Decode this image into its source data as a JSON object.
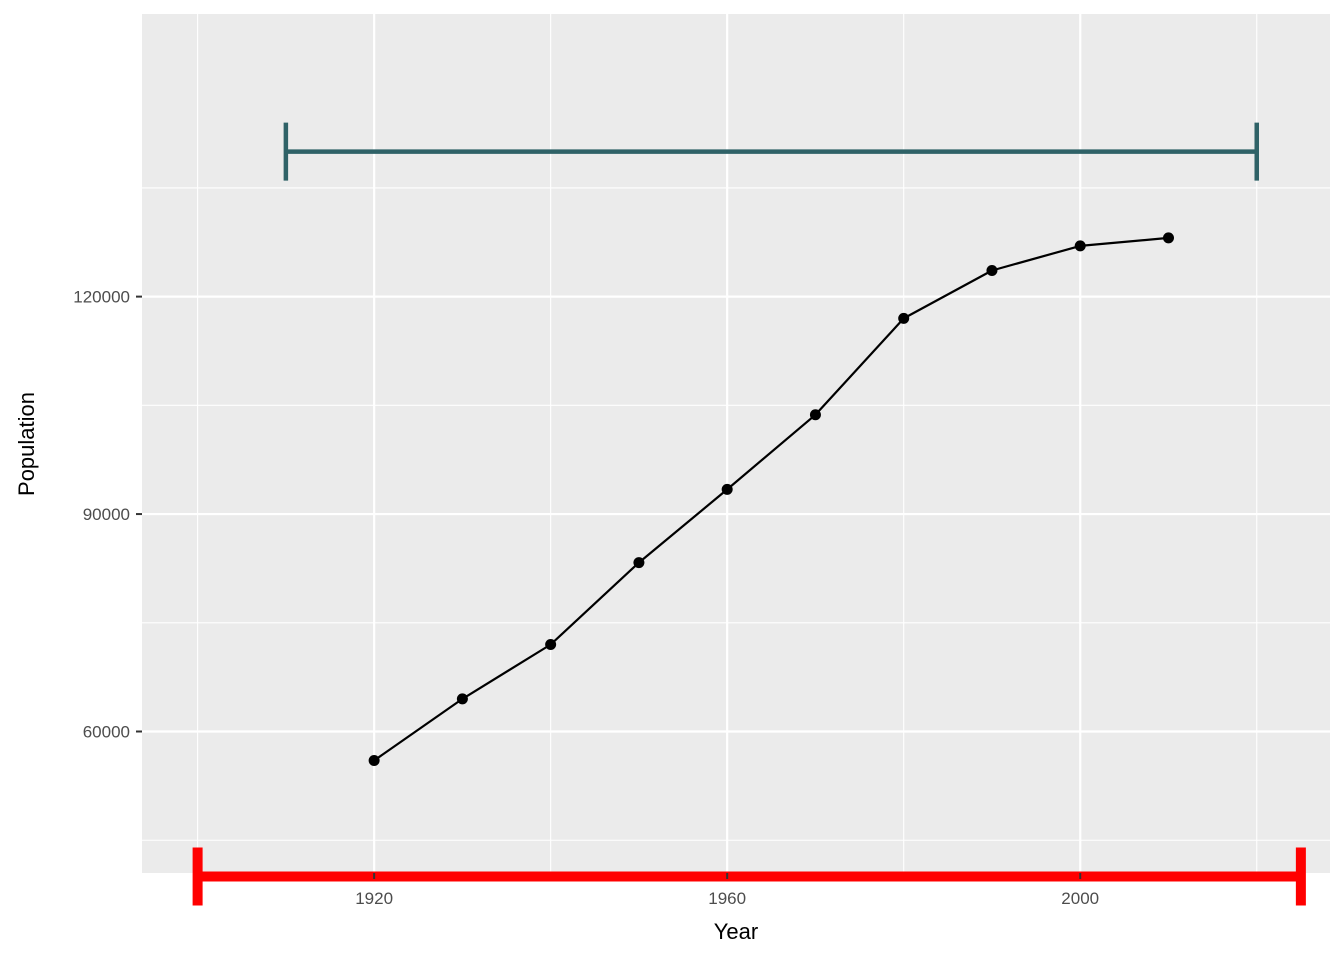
{
  "chart_data": {
    "type": "line",
    "title": "",
    "xlabel": "Year",
    "ylabel": "Population",
    "xlim": [
      1893.7,
      2028.3
    ],
    "ylim": [
      40480,
      158990
    ],
    "x_ticks": [
      1920,
      1960,
      2000
    ],
    "x_tick_labels": [
      "1920",
      "1960",
      "2000"
    ],
    "x_minor_gridlines": [
      1900,
      1940,
      1980,
      2020
    ],
    "y_ticks": [
      60000,
      90000,
      120000
    ],
    "y_tick_labels": [
      "60000",
      "90000",
      "120000"
    ],
    "y_minor_gridlines": [
      45000,
      75000,
      105000,
      135000
    ],
    "grid": true,
    "panel_background": "#ebebeb",
    "grid_color": "#ffffff",
    "series": [
      {
        "x": [
          1920,
          1930,
          1940,
          1950,
          1960,
          1970,
          1980,
          1990,
          2000,
          2010
        ],
        "y": [
          56000,
          64500,
          72000,
          83300,
          93400,
          103700,
          117000,
          123600,
          127000,
          128100
        ],
        "color": "#000000",
        "markers": true
      }
    ],
    "range_bars": [
      {
        "xmin": 1910,
        "xmax": 2020,
        "y": 140000,
        "color": "#2f6267",
        "cap_half_height": 4000
      },
      {
        "xmin": 1900,
        "xmax": 2025,
        "y": 40000,
        "color": "#ff0000",
        "cap_half_height": 4000
      }
    ]
  }
}
